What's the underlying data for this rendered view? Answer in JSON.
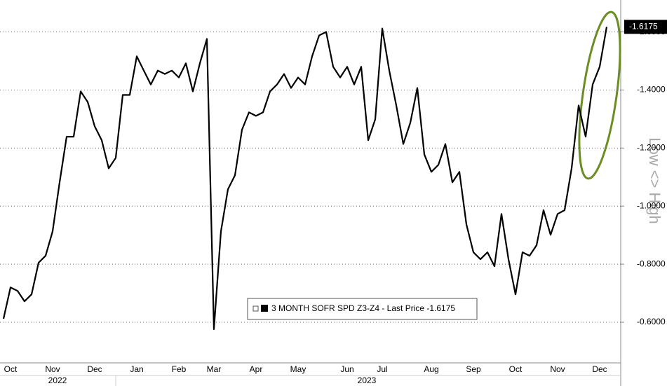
{
  "chart_data": {
    "type": "line",
    "y_axis_label": "Low <> High",
    "last_price_label": "-1.6175",
    "x_groups": [
      "2022",
      "2023"
    ],
    "categories": [
      null,
      "Oct",
      null,
      null,
      null,
      null,
      null,
      "Nov",
      null,
      null,
      null,
      null,
      null,
      "Dec",
      null,
      null,
      null,
      null,
      null,
      "Jan",
      null,
      null,
      null,
      null,
      null,
      "Feb",
      null,
      null,
      null,
      null,
      "Mar",
      null,
      null,
      null,
      null,
      null,
      "Apr",
      null,
      null,
      null,
      null,
      null,
      "May",
      null,
      null,
      null,
      null,
      null,
      null,
      "Jun",
      null,
      null,
      null,
      null,
      "Jul",
      null,
      null,
      null,
      null,
      null,
      null,
      "Aug",
      null,
      null,
      null,
      null,
      null,
      "Sep",
      null,
      null,
      null,
      null,
      null,
      "Oct",
      null,
      null,
      null,
      null,
      null,
      "Nov",
      null,
      null,
      null,
      null,
      null,
      "Dec",
      null
    ],
    "series": [
      {
        "name": "3 MONTH SOFR SPD Z3-Z4 - Last Price -1.6175",
        "color": "#000000",
        "values": [
          -0.612,
          -0.72,
          -0.708,
          -0.672,
          -0.696,
          -0.805,
          -0.829,
          -0.913,
          -1.082,
          -1.239,
          -1.239,
          -1.395,
          -1.359,
          -1.275,
          -1.227,
          -1.13,
          -1.166,
          -1.383,
          -1.383,
          -1.516,
          -1.467,
          -1.419,
          -1.467,
          -1.455,
          -1.467,
          -1.443,
          -1.492,
          -1.395,
          -1.492,
          -1.576,
          -0.576,
          -0.913,
          -1.058,
          -1.106,
          -1.263,
          -1.323,
          -1.311,
          -1.323,
          -1.395,
          -1.419,
          -1.455,
          -1.407,
          -1.443,
          -1.419,
          -1.516,
          -1.588,
          -1.6,
          -1.48,
          -1.443,
          -1.48,
          -1.419,
          -1.48,
          -1.227,
          -1.299,
          -1.612,
          -1.467,
          -1.347,
          -1.214,
          -1.287,
          -1.407,
          -1.178,
          -1.118,
          -1.142,
          -1.214,
          -1.082,
          -1.118,
          -0.937,
          -0.841,
          -0.817,
          -0.841,
          -0.793,
          -0.973,
          -0.817,
          -0.696,
          -0.841,
          -0.829,
          -0.865,
          -0.986,
          -0.901,
          -0.973,
          -0.986,
          -1.13,
          -1.347,
          -1.239,
          -1.419,
          -1.48,
          -1.6175
        ]
      }
    ],
    "ylim": [
      -0.46,
      -1.71
    ],
    "yticks": [
      {
        "value": -0.6,
        "label": "-0.6000"
      },
      {
        "value": -0.8,
        "label": "-0.8000"
      },
      {
        "value": -1.0,
        "label": "-1.0000"
      },
      {
        "value": -1.2,
        "label": "-1.2000"
      },
      {
        "value": -1.4,
        "label": "-1.4000"
      },
      {
        "value": -1.6,
        "label": "-1.6000"
      }
    ],
    "grid": true
  }
}
